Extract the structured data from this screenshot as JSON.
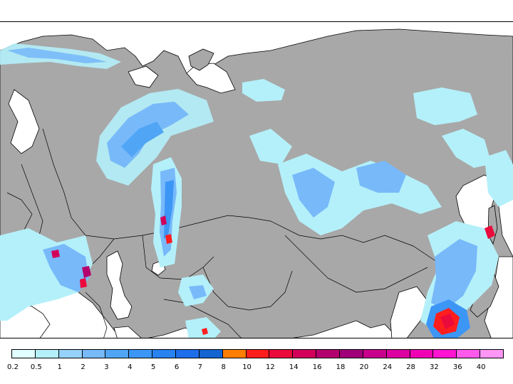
{
  "colors": {
    "land": "#a8a8a8",
    "water": "#ffffff",
    "border": "#000000",
    "background": "#ffffff"
  },
  "legend": {
    "labels": [
      "0.2",
      "0.5",
      "1",
      "2",
      "3",
      "4",
      "5",
      "6",
      "7",
      "8",
      "10",
      "12",
      "14",
      "16",
      "18",
      "20",
      "24",
      "28",
      "32",
      "36",
      "40"
    ],
    "colors": [
      "#e1ffff",
      "#b4f0fa",
      "#96d2fa",
      "#78b9fa",
      "#50a5f5",
      "#3c96f5",
      "#2882f0",
      "#1e6eeb",
      "#1464d2",
      "#ff7d00",
      "#ff1e1e",
      "#eb0a3c",
      "#d2005a",
      "#b4006e",
      "#a00078",
      "#c8008c",
      "#dc00a0",
      "#f000b4",
      "#ff14d2",
      "#ff5aeb",
      "#ff96f5"
    ]
  }
}
